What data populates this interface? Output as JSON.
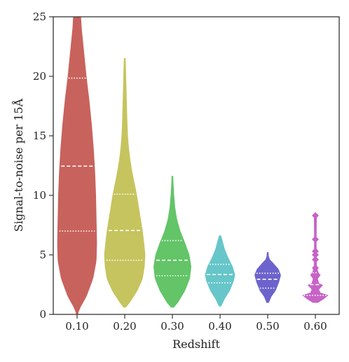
{
  "chart_data": {
    "type": "violin",
    "xlabel": "Redshift",
    "ylabel": "Signal-to-noise per 15Å",
    "ylim": [
      0,
      25
    ],
    "yticks": [
      "0",
      "5",
      "10",
      "15",
      "20",
      "25"
    ],
    "grid": false,
    "categories": [
      "0.10",
      "0.20",
      "0.30",
      "0.40",
      "0.50",
      "0.60"
    ],
    "series": [
      {
        "color": "#c8625c",
        "style": "smooth",
        "quartiles": [
          7.0,
          12.45,
          19.85
        ],
        "profile": [
          [
            0.0,
            0.02
          ],
          [
            0.5,
            0.1
          ],
          [
            1.5,
            0.38
          ],
          [
            3.0,
            0.66
          ],
          [
            4.5,
            0.8
          ],
          [
            6.0,
            0.82
          ],
          [
            8.0,
            0.8
          ],
          [
            10.0,
            0.78
          ],
          [
            12.0,
            0.74
          ],
          [
            14.0,
            0.68
          ],
          [
            16.0,
            0.6
          ],
          [
            18.0,
            0.5
          ],
          [
            20.0,
            0.38
          ],
          [
            22.0,
            0.28
          ],
          [
            24.0,
            0.18
          ],
          [
            25.0,
            0.15
          ]
        ]
      },
      {
        "color": "#c6c45e",
        "style": "smooth",
        "quartiles": [
          4.55,
          7.05,
          10.1
        ],
        "profile": [
          [
            0.6,
            0.04
          ],
          [
            1.0,
            0.2
          ],
          [
            2.0,
            0.52
          ],
          [
            3.0,
            0.74
          ],
          [
            4.0,
            0.82
          ],
          [
            5.0,
            0.85
          ],
          [
            6.0,
            0.8
          ],
          [
            7.0,
            0.74
          ],
          [
            8.0,
            0.66
          ],
          [
            9.0,
            0.58
          ],
          [
            10.0,
            0.5
          ],
          [
            11.0,
            0.4
          ],
          [
            12.0,
            0.3
          ],
          [
            13.0,
            0.22
          ],
          [
            14.0,
            0.16
          ],
          [
            15.0,
            0.12
          ],
          [
            16.5,
            0.09
          ],
          [
            18.0,
            0.07
          ],
          [
            19.5,
            0.05
          ],
          [
            21.0,
            0.03
          ],
          [
            21.5,
            0.02
          ]
        ]
      },
      {
        "color": "#63c468",
        "style": "smooth",
        "quartiles": [
          3.25,
          4.55,
          6.2
        ],
        "profile": [
          [
            0.6,
            0.05
          ],
          [
            1.0,
            0.22
          ],
          [
            2.0,
            0.52
          ],
          [
            3.0,
            0.72
          ],
          [
            4.0,
            0.78
          ],
          [
            5.0,
            0.7
          ],
          [
            6.0,
            0.52
          ],
          [
            7.0,
            0.32
          ],
          [
            8.0,
            0.18
          ],
          [
            9.0,
            0.1
          ],
          [
            10.0,
            0.06
          ],
          [
            11.0,
            0.03
          ],
          [
            11.6,
            0.02
          ]
        ]
      },
      {
        "color": "#66c6c9",
        "style": "smooth",
        "quartiles": [
          2.65,
          3.35,
          4.2
        ],
        "profile": [
          [
            0.7,
            0.04
          ],
          [
            1.3,
            0.18
          ],
          [
            2.0,
            0.4
          ],
          [
            2.8,
            0.56
          ],
          [
            3.3,
            0.62
          ],
          [
            4.0,
            0.52
          ],
          [
            4.8,
            0.32
          ],
          [
            5.5,
            0.18
          ],
          [
            6.2,
            0.09
          ],
          [
            6.6,
            0.03
          ]
        ]
      },
      {
        "color": "#6c64cc",
        "style": "smooth",
        "quartiles": [
          2.2,
          2.95,
          3.45
        ],
        "profile": [
          [
            1.0,
            0.04
          ],
          [
            1.5,
            0.14
          ],
          [
            2.0,
            0.32
          ],
          [
            2.7,
            0.46
          ],
          [
            3.3,
            0.54
          ],
          [
            3.8,
            0.44
          ],
          [
            4.3,
            0.22
          ],
          [
            4.6,
            0.08
          ],
          [
            4.9,
            0.03
          ],
          [
            5.2,
            0.02
          ]
        ]
      },
      {
        "color": "#c763c6",
        "style": "stepped",
        "quartiles": [
          1.6,
          2.5,
          3.5
        ],
        "profile": [
          [
            1.0,
            0.1
          ],
          [
            1.3,
            0.34
          ],
          [
            1.6,
            0.52
          ],
          [
            1.8,
            0.2
          ],
          [
            2.1,
            0.14
          ],
          [
            2.45,
            0.3
          ],
          [
            2.6,
            0.14
          ],
          [
            3.0,
            0.09
          ],
          [
            3.3,
            0.2
          ],
          [
            3.5,
            0.12
          ],
          [
            3.8,
            0.07
          ],
          [
            4.0,
            0.05
          ],
          [
            4.6,
            0.04
          ],
          [
            4.9,
            0.03
          ],
          [
            5.2,
            0.04
          ],
          [
            6.2,
            0.035
          ],
          [
            8.3,
            0.045
          ]
        ],
        "outliers": [
          3.9,
          4.6,
          5.0,
          5.3,
          6.3,
          8.3
        ]
      }
    ]
  }
}
